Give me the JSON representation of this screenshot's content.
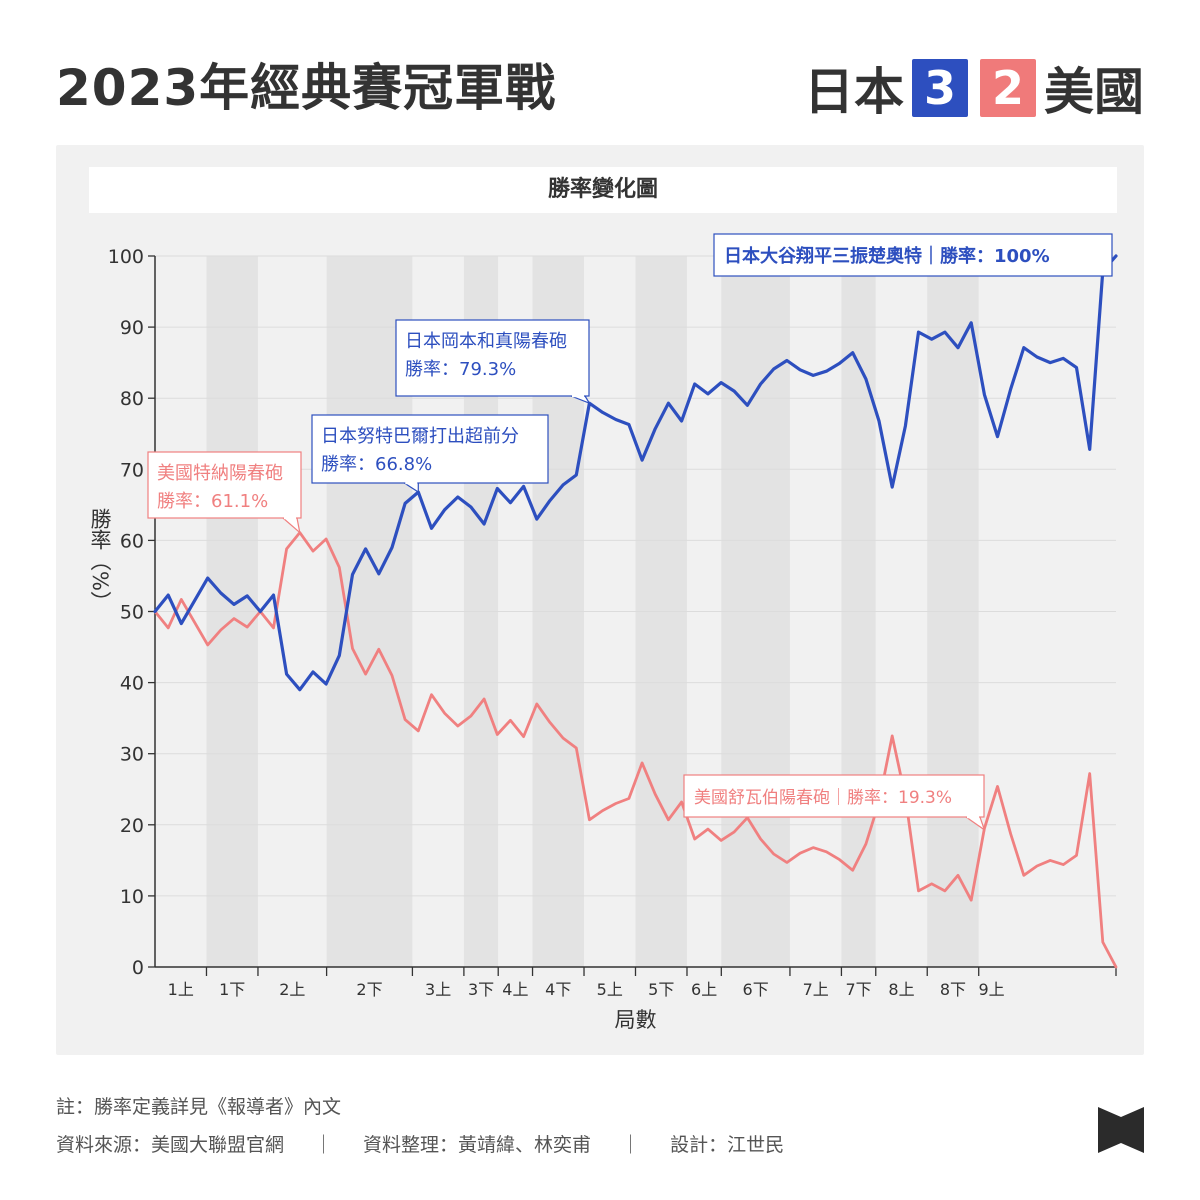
{
  "header": {
    "title": "2023年經典賽冠軍戰",
    "team_a": "日本",
    "score_a": "3",
    "score_b": "2",
    "team_b": "美國"
  },
  "colors": {
    "japan": "#2d4fbf",
    "usa": "#f08080",
    "japan_box": "#2d4fbf",
    "usa_box": "#f07a7a"
  },
  "chart_data": {
    "type": "line",
    "title": "勝率變化圖",
    "xlabel": "局數",
    "ylabel": "勝率（%）",
    "ylim": [
      0,
      100
    ],
    "yticks": [
      0,
      10,
      20,
      30,
      40,
      50,
      60,
      70,
      80,
      90,
      100
    ],
    "x_end": 56,
    "half_innings": [
      {
        "label": "1上",
        "start": 0,
        "end": 3
      },
      {
        "label": "1下",
        "start": 3,
        "end": 6
      },
      {
        "label": "2上",
        "start": 6,
        "end": 10
      },
      {
        "label": "2下",
        "start": 10,
        "end": 15
      },
      {
        "label": "3上",
        "start": 15,
        "end": 18
      },
      {
        "label": "3下",
        "start": 18,
        "end": 20
      },
      {
        "label": "4上",
        "start": 20,
        "end": 22
      },
      {
        "label": "4下",
        "start": 22,
        "end": 25
      },
      {
        "label": "5上",
        "start": 25,
        "end": 28
      },
      {
        "label": "5下",
        "start": 28,
        "end": 31
      },
      {
        "label": "6上",
        "start": 31,
        "end": 33
      },
      {
        "label": "6下",
        "start": 33,
        "end": 37
      },
      {
        "label": "7上",
        "start": 37,
        "end": 40
      },
      {
        "label": "7下",
        "start": 40,
        "end": 42
      },
      {
        "label": "8上",
        "start": 42,
        "end": 45
      },
      {
        "label": "8下",
        "start": 45,
        "end": 48
      },
      {
        "label": "9上",
        "start": 48,
        "end": 49.5
      }
    ],
    "series": [
      {
        "name": "日本",
        "values": [
          50,
          52.3,
          48.3,
          51.5,
          54.7,
          52.6,
          51,
          52.2,
          50,
          52.3,
          41.2,
          39,
          41.5,
          39.8,
          43.8,
          55.2,
          58.8,
          55.3,
          59,
          65.2,
          66.8,
          61.7,
          64.3,
          66.1,
          64.7,
          62.3,
          67.3,
          65.3,
          67.6,
          63,
          65.6,
          67.8,
          69.2,
          79.3,
          78,
          77,
          76.3,
          71.3,
          75.7,
          79.3,
          76.8,
          82,
          80.6,
          82.2,
          81,
          79,
          82,
          84.1,
          85.3,
          84,
          83.2,
          83.8,
          84.9,
          86.4,
          82.7,
          76.8,
          67.5,
          76.1,
          89.3,
          88.3,
          89.3,
          87.1,
          90.6,
          80.5,
          74.6,
          81.3,
          87.1,
          85.8,
          85,
          85.6,
          84.3,
          72.8,
          97.9,
          100
        ]
      },
      {
        "name": "美國",
        "values": [
          50,
          47.7,
          51.7,
          48.5,
          45.3,
          47.4,
          49,
          47.8,
          50,
          47.7,
          58.8,
          61.1,
          58.5,
          60.2,
          56.2,
          44.8,
          41.2,
          44.7,
          41,
          34.8,
          33.2,
          38.3,
          35.7,
          33.9,
          35.3,
          37.7,
          32.7,
          34.7,
          32.4,
          37,
          34.4,
          32.2,
          30.8,
          20.7,
          22,
          23,
          23.7,
          28.7,
          24.3,
          20.7,
          23.2,
          18,
          19.4,
          17.8,
          19,
          21,
          18,
          15.9,
          14.7,
          16,
          16.8,
          16.2,
          15.1,
          13.6,
          17.3,
          23.2,
          32.5,
          23.9,
          10.7,
          11.7,
          10.7,
          12.9,
          9.4,
          19.5,
          25.4,
          18.7,
          12.9,
          14.2,
          15,
          14.4,
          15.7,
          27.2,
          3.5,
          0
        ]
      }
    ],
    "annotations": [
      {
        "team": "美國",
        "line1": "美國特納陽春砲",
        "line2": "勝率：61.1%"
      },
      {
        "team": "日本",
        "line1": "日本努特巴爾打出超前分",
        "line2": "勝率：66.8%"
      },
      {
        "team": "日本",
        "line1": "日本岡本和真陽春砲",
        "line2": "勝率：79.3%"
      },
      {
        "team": "日本",
        "line1": "日本大谷翔平三振楚奧特｜勝率：100%"
      },
      {
        "team": "美國",
        "line1": "美國舒瓦伯陽春砲｜勝率：19.3%"
      }
    ]
  },
  "footer": {
    "note": "註：勝率定義詳見《報導者》內文",
    "source": "資料來源：美國大聯盟官網",
    "sep": "｜",
    "compiled": "資料整理：黃靖緯、林奕甫",
    "design": "設計：江世民"
  },
  "logo_icon": "bowtie-logo-icon"
}
